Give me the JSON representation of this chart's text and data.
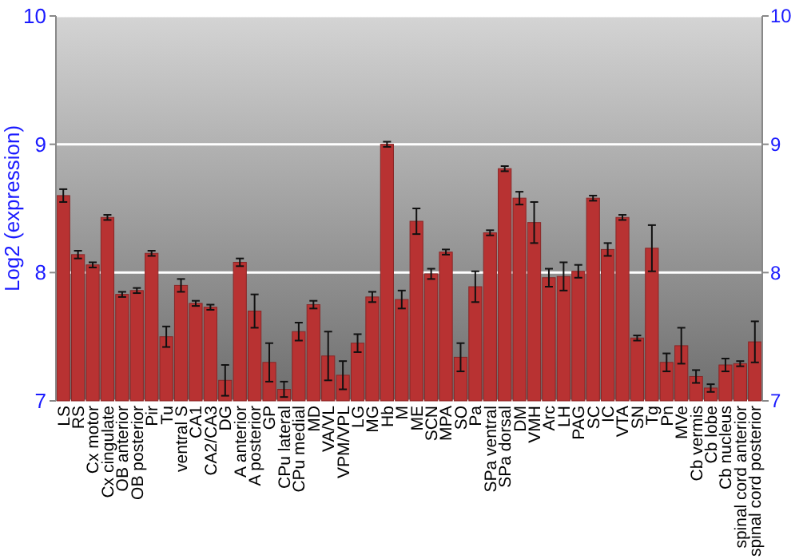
{
  "chart_data": {
    "type": "bar",
    "ylabel": "Log2 (expression)",
    "categories": [
      "LS",
      "RS",
      "Cx motor",
      "Cx cingulate",
      "OB anterior",
      "OB posterior",
      "Pir",
      "Tu",
      "ventral S",
      "CA1",
      "CA2/CA3",
      "DG",
      "A anterior",
      "A posterior",
      "GP",
      "CPu lateral",
      "CPu medial",
      "MD",
      "VA/VL",
      "VPM/VPL",
      "LG",
      "MG",
      "Hb",
      "M",
      "ME",
      "SCN",
      "MPA",
      "SO",
      "Pa",
      "SPa ventral",
      "SPa dorsal",
      "DM",
      "VMH",
      "Arc",
      "LH",
      "PAG",
      "SC",
      "IC",
      "VTA",
      "SN",
      "Tg",
      "Pn",
      "MVe",
      "Cb vermis",
      "Cb lobe",
      "Cb nucleus",
      "spinal cord anterior",
      "spinal cord posterior"
    ],
    "values": [
      8.6,
      8.14,
      8.06,
      8.43,
      7.83,
      7.86,
      8.15,
      7.5,
      7.9,
      7.76,
      7.73,
      7.16,
      8.08,
      7.7,
      7.3,
      7.09,
      7.54,
      7.75,
      7.35,
      7.2,
      7.45,
      7.81,
      9.0,
      7.79,
      8.4,
      7.99,
      8.16,
      7.34,
      7.89,
      8.31,
      8.81,
      8.58,
      8.39,
      7.96,
      7.97,
      8.01,
      8.58,
      8.18,
      8.43,
      7.49,
      8.19,
      7.3,
      7.43,
      7.19,
      7.1,
      7.28,
      7.29,
      7.46
    ],
    "errors": [
      0.05,
      0.03,
      0.02,
      0.02,
      0.02,
      0.02,
      0.02,
      0.08,
      0.05,
      0.02,
      0.02,
      0.12,
      0.03,
      0.13,
      0.15,
      0.06,
      0.07,
      0.03,
      0.19,
      0.11,
      0.07,
      0.04,
      0.02,
      0.07,
      0.1,
      0.04,
      0.02,
      0.11,
      0.12,
      0.02,
      0.02,
      0.05,
      0.16,
      0.07,
      0.11,
      0.05,
      0.02,
      0.05,
      0.02,
      0.02,
      0.18,
      0.07,
      0.14,
      0.05,
      0.03,
      0.05,
      0.02,
      0.16
    ],
    "color": "#b83232",
    "ylim": [
      7,
      10
    ],
    "yticks": [
      7,
      8,
      9,
      10
    ],
    "y2lim": [
      7,
      10
    ],
    "y2ticks": [
      7,
      8,
      9,
      10
    ],
    "grid": "y"
  }
}
